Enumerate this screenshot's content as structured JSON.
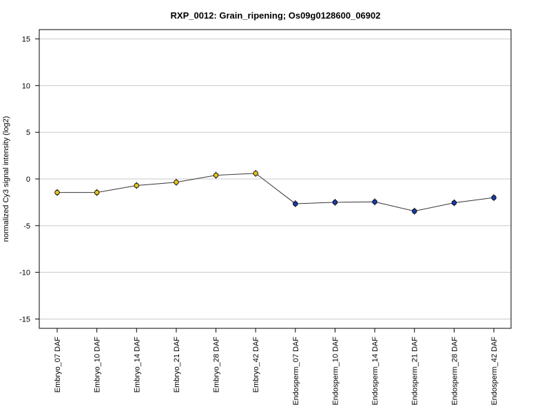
{
  "chart_data": {
    "type": "line",
    "title": "RXP_0012: Grain_ripening; Os09g0128600_06902",
    "xlabel": "",
    "ylabel": "normalized Cy3 signal intensity (log2)",
    "ylim": [
      -16,
      16
    ],
    "yticks": [
      -15,
      -10,
      -5,
      0,
      5,
      10,
      15
    ],
    "grid": true,
    "categories": [
      "Embryo_07 DAF",
      "Embryo_10 DAF",
      "Embryo_14 DAF",
      "Embryo_21 DAF",
      "Embryo_28 DAF",
      "Embryo_42 DAF",
      "Endosperm_07 DAF",
      "Endosperm_10 DAF",
      "Endosperm_14 DAF",
      "Endosperm_21 DAF",
      "Endosperm_28 DAF",
      "Endosperm_42 DAF"
    ],
    "values": [
      -1.45,
      -1.45,
      -0.7,
      -0.35,
      0.4,
      0.6,
      -2.65,
      -2.5,
      -2.45,
      -3.45,
      -2.55,
      -2.0
    ],
    "point_colors": [
      "#e8c21a",
      "#e8c21a",
      "#e8c21a",
      "#e8c21a",
      "#e8c21a",
      "#e8c21a",
      "#1a3caa",
      "#1a3caa",
      "#1a3caa",
      "#1a3caa",
      "#1a3caa",
      "#1a3caa"
    ],
    "line_color": "#333333",
    "grid_color": "#c8c8c8"
  }
}
